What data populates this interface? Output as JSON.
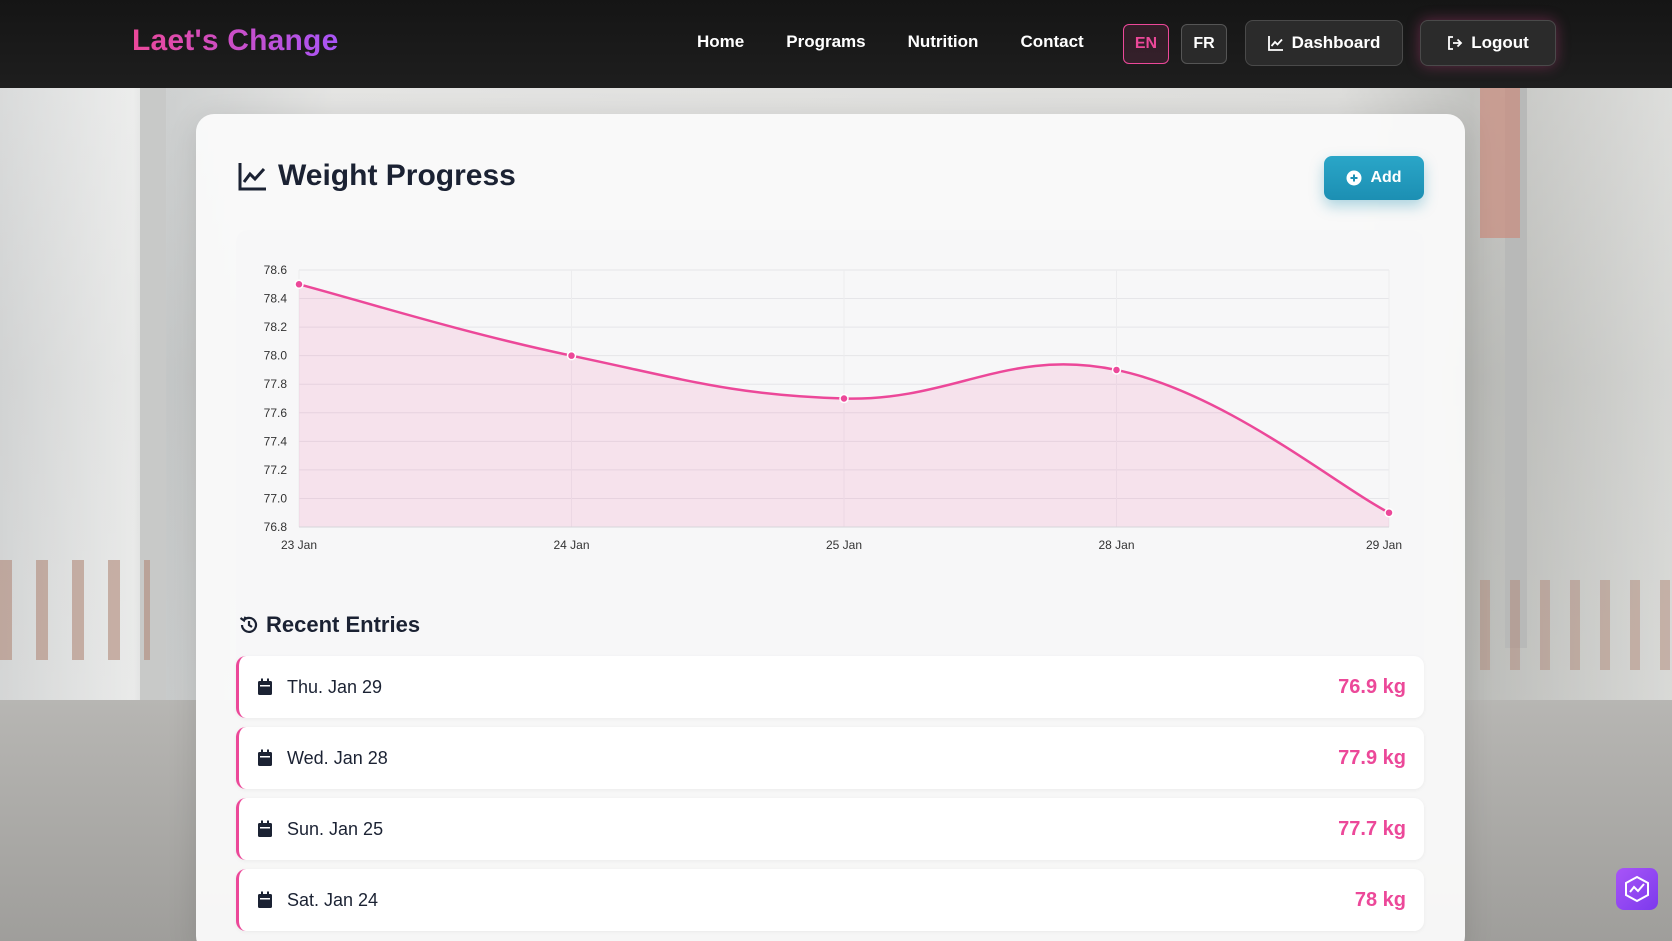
{
  "brand": "Laet's Change",
  "nav": {
    "links": [
      "Home",
      "Programs",
      "Nutrition",
      "Contact"
    ],
    "lang_en": "EN",
    "lang_fr": "FR",
    "dashboard_label": "Dashboard",
    "logout_label": "Logout"
  },
  "card": {
    "title": "Weight Progress",
    "add_label": "Add",
    "recent_title": "Recent Entries"
  },
  "chart_data": {
    "type": "line",
    "categories": [
      "23 Jan",
      "24 Jan",
      "25 Jan",
      "28 Jan",
      "29 Jan"
    ],
    "values": [
      78.5,
      78.0,
      77.7,
      77.9,
      76.9
    ],
    "ylim": [
      76.8,
      78.6
    ],
    "yticks": [
      "78.6",
      "78.4",
      "78.2",
      "78.0",
      "77.8",
      "77.6",
      "77.4",
      "77.2",
      "77.0",
      "76.8"
    ],
    "grid": true,
    "fill": true,
    "color": "#ec4899"
  },
  "entries": [
    {
      "date": "Thu. Jan 29",
      "weight": "76.9 kg"
    },
    {
      "date": "Wed. Jan 28",
      "weight": "77.9 kg"
    },
    {
      "date": "Sun. Jan 25",
      "weight": "77.7 kg"
    },
    {
      "date": "Sat. Jan 24",
      "weight": "78 kg"
    }
  ]
}
